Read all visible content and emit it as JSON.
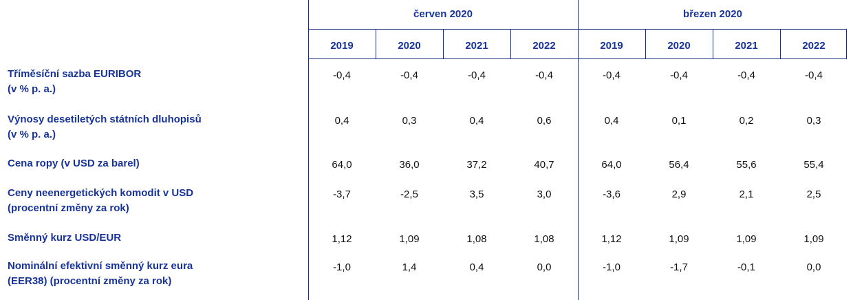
{
  "header": {
    "groups": [
      {
        "label": "červen 2020",
        "years": [
          "2019",
          "2020",
          "2021",
          "2022"
        ]
      },
      {
        "label": "březen 2020",
        "years": [
          "2019",
          "2020",
          "2021",
          "2022"
        ]
      }
    ]
  },
  "rows": [
    {
      "label": [
        "Tříměsíční sazba EURIBOR",
        "(v % p. a.)"
      ],
      "values": [
        "-0,4",
        "-0,4",
        "-0,4",
        "-0,4",
        "-0,4",
        "-0,4",
        "-0,4",
        "-0,4"
      ]
    },
    {
      "label": [
        "Výnosy desetiletých státních dluhopisů",
        "(v % p. a.)"
      ],
      "values": [
        "0,4",
        "0,3",
        "0,4",
        "0,6",
        "0,4",
        "0,1",
        "0,2",
        "0,3"
      ]
    },
    {
      "label": [
        "Cena ropy (v USD za barel)"
      ],
      "values": [
        "64,0",
        "36,0",
        "37,2",
        "40,7",
        "64,0",
        "56,4",
        "55,6",
        "55,4"
      ]
    },
    {
      "label": [
        "Ceny neenergetických komodit v USD",
        "(procentní změny za rok)"
      ],
      "values": [
        "-3,7",
        "-2,5",
        "3,5",
        "3,0",
        "-3,6",
        "2,9",
        "2,1",
        "2,5"
      ]
    },
    {
      "label": [
        "Směnný kurz USD/EUR"
      ],
      "values": [
        "1,12",
        "1,09",
        "1,08",
        "1,08",
        "1,12",
        "1,09",
        "1,09",
        "1,09"
      ]
    },
    {
      "label": [
        "Nominální efektivní směnný kurz eura",
        "(EER38) (procentní změny za rok)"
      ],
      "values": [
        "-1,0",
        "1,4",
        "0,4",
        "0,0",
        "-1,0",
        "-1,7",
        "-0,1",
        "0,0"
      ]
    }
  ]
}
